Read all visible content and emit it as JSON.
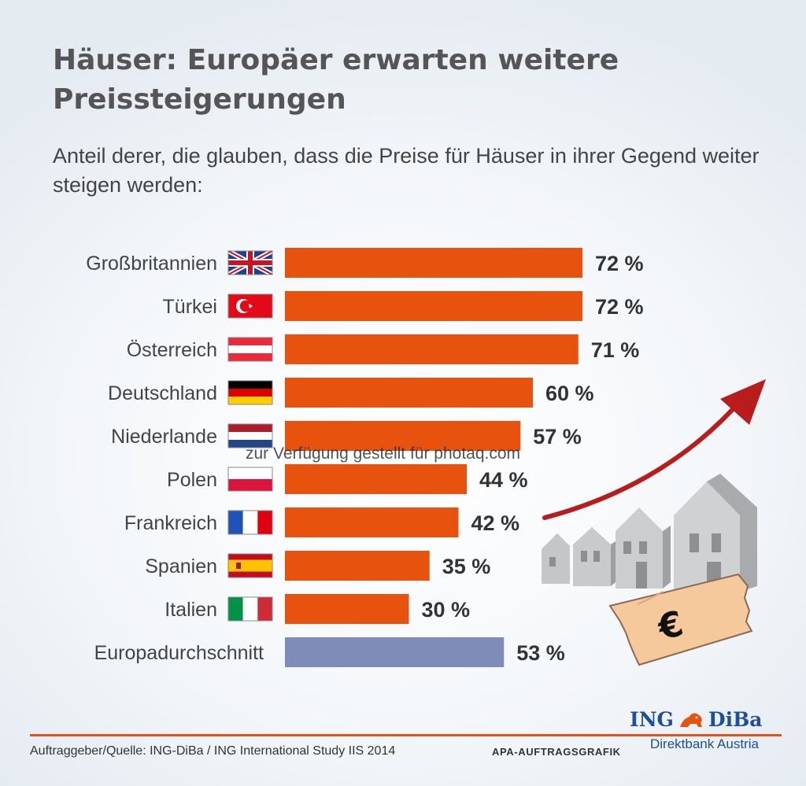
{
  "title": "Häuser: Europäer erwarten weitere Preissteigerungen",
  "subtitle": "Anteil derer, die glauben, dass die Preise für Häuser in ihrer Gegend weiter steigen werden:",
  "chart_data": {
    "type": "bar",
    "orientation": "horizontal",
    "categories": [
      "Großbritannien",
      "Türkei",
      "Österreich",
      "Deutschland",
      "Niederlande",
      "Polen",
      "Frankreich",
      "Spanien",
      "Italien",
      "Europadurchschnitt"
    ],
    "values": [
      72,
      72,
      71,
      60,
      57,
      44,
      42,
      35,
      30,
      53
    ],
    "value_labels": [
      "72 %",
      "72 %",
      "71 %",
      "60 %",
      "57 %",
      "44 %",
      "42 %",
      "35 %",
      "30 %",
      "53 %"
    ],
    "unit": "%",
    "xlim": [
      0,
      72
    ],
    "grid": false,
    "colors": {
      "country_bar": "#e8520f",
      "average_bar": "#7f8cb8"
    },
    "flags": [
      "flag-uk-icon",
      "flag-turkey-icon",
      "flag-austria-icon",
      "flag-germany-icon",
      "flag-netherlands-icon",
      "flag-poland-icon",
      "flag-france-icon",
      "flag-spain-icon",
      "flag-italy-icon",
      null
    ]
  },
  "illustration": {
    "icons": [
      "rising-arrow-icon",
      "houses-icon",
      "euro-banknote-icon"
    ],
    "arrow_color": "#b81c1c",
    "euro_symbol": "€"
  },
  "watermark": "zur Verfügung gestellt für photaq.com",
  "footer": {
    "source": "Auftraggeber/Quelle: ING-DiBa / ING International Study IIS 2014",
    "apa": "APA-AUFTRAGSGRAFIK",
    "logo_name": "ING",
    "logo_name2": "DiBa",
    "logo_sub": "Direktbank Austria",
    "accent_color": "#e0531a",
    "brand_color": "#1c4f9c"
  }
}
